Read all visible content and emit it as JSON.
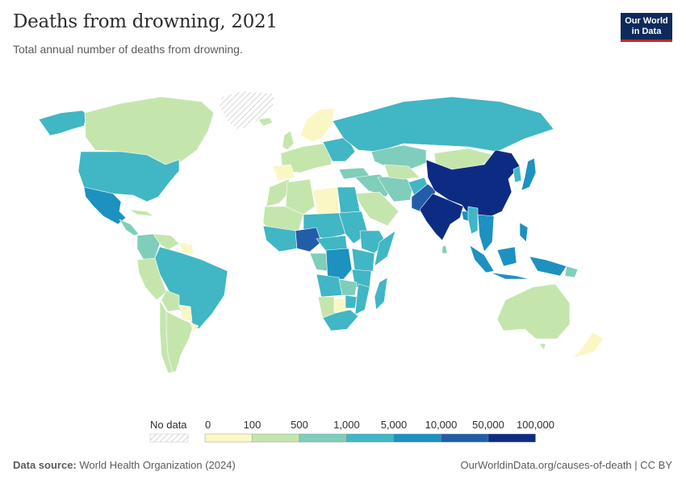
{
  "header": {
    "title": "Deaths from drowning, 2021",
    "subtitle": "Total annual number of deaths from drowning."
  },
  "logo": {
    "line1": "Our World",
    "line2": "in Data"
  },
  "legend": {
    "no_data_label": "No data",
    "ticks": [
      "0",
      "100",
      "500",
      "1,000",
      "5,000",
      "10,000",
      "50,000",
      "100,000"
    ],
    "bin_colors": [
      "#fbf7c5",
      "#c4e6ad",
      "#7fcdbb",
      "#41b6c4",
      "#1d91c0",
      "#225ea8",
      "#0c2c84"
    ]
  },
  "footer": {
    "source_label": "Data source:",
    "source_text": "World Health Organization (2024)",
    "credit": "OurWorldinData.org/causes-of-death | CC BY"
  }
}
